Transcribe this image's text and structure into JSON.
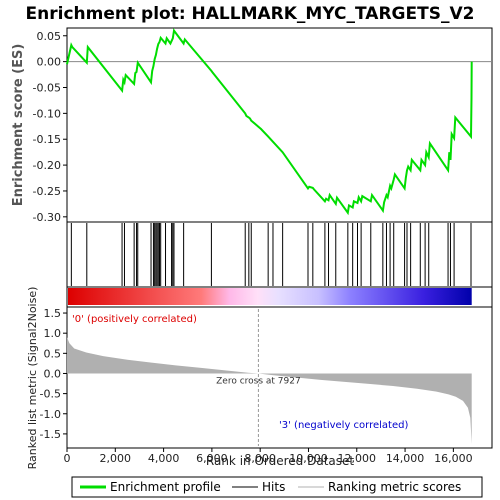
{
  "chart_data": {
    "type": "line",
    "title": "Enrichment plot: HALLMARK_MYC_TARGETS_V2",
    "top_panel": {
      "ylabel": "Enrichment score (ES)",
      "ylim": [
        -0.31,
        0.065
      ],
      "yticks": [
        0.05,
        0.0,
        -0.05,
        -0.1,
        -0.15,
        -0.2,
        -0.25,
        -0.3
      ],
      "ytick_labels": [
        "0.05",
        "0.00",
        "-0.05",
        "-0.10",
        "-0.15",
        "-0.20",
        "-0.25",
        "-0.30"
      ],
      "series": [
        {
          "name": "Enrichment profile",
          "color": "#00dd00",
          "x": [
            0,
            180,
            220,
            820,
            860,
            2280,
            2330,
            2380,
            2430,
            2780,
            2830,
            2880,
            2930,
            3480,
            3530,
            3580,
            3630,
            3680,
            3730,
            3780,
            3830,
            3880,
            4080,
            4130,
            4280,
            4330,
            4380,
            4430,
            4830,
            4880,
            5980,
            6030,
            7380,
            7430,
            7530,
            7580,
            7630,
            8030,
            8330,
            8530,
            8930,
            9980,
            10030,
            10180,
            10230,
            10680,
            10730,
            10830,
            10880,
            11130,
            11180,
            11630,
            11680,
            11830,
            11880,
            12030,
            12080,
            12180,
            12230,
            12580,
            12630,
            13080,
            13130,
            13230,
            13280,
            13380,
            13430,
            13530,
            13580,
            13980,
            14030,
            14080,
            14130,
            14230,
            14280,
            14630,
            14680,
            14830,
            14880,
            14980,
            15030,
            15780,
            15830,
            15880,
            15930,
            16030,
            16080,
            16730,
            16750,
            16760
          ],
          "y": [
            -0.005,
            0.032,
            0.028,
            -0.002,
            0.028,
            -0.056,
            -0.035,
            -0.04,
            -0.026,
            -0.043,
            -0.022,
            -0.02,
            -0.002,
            -0.04,
            -0.018,
            -0.009,
            0.005,
            0.013,
            0.025,
            0.034,
            0.038,
            0.046,
            0.035,
            0.045,
            0.035,
            0.04,
            0.045,
            0.06,
            0.035,
            0.043,
            -0.018,
            -0.021,
            -0.1,
            -0.105,
            -0.108,
            -0.11,
            -0.114,
            -0.13,
            -0.145,
            -0.155,
            -0.175,
            -0.245,
            -0.242,
            -0.244,
            -0.247,
            -0.27,
            -0.265,
            -0.268,
            -0.258,
            -0.275,
            -0.263,
            -0.292,
            -0.278,
            -0.282,
            -0.27,
            -0.273,
            -0.262,
            -0.27,
            -0.26,
            -0.27,
            -0.258,
            -0.288,
            -0.272,
            -0.258,
            -0.262,
            -0.24,
            -0.245,
            -0.228,
            -0.218,
            -0.245,
            -0.225,
            -0.21,
            -0.203,
            -0.21,
            -0.19,
            -0.21,
            -0.19,
            -0.2,
            -0.175,
            -0.185,
            -0.158,
            -0.21,
            -0.175,
            -0.19,
            -0.14,
            -0.148,
            -0.108,
            -0.145,
            -0.07,
            0.0
          ]
        }
      ],
      "zero_line_color": "#888888"
    },
    "hits_panel": {
      "legend_name": "Hits",
      "hit_positions": [
        180,
        820,
        2280,
        2380,
        2780,
        2880,
        2930,
        3480,
        3580,
        3630,
        3680,
        3730,
        3780,
        3830,
        3880,
        4080,
        4330,
        4380,
        4430,
        4830,
        5980,
        7380,
        7530,
        7630,
        8330,
        8530,
        8930,
        9980,
        10180,
        10680,
        10830,
        11130,
        11630,
        11830,
        12030,
        12180,
        12580,
        13080,
        13230,
        13380,
        13530,
        13980,
        14080,
        14230,
        14630,
        14830,
        14980,
        15780,
        15880,
        16030,
        16730
      ],
      "color": "#000000"
    },
    "ranked_metric": {
      "legend_name": "Ranking metric scores",
      "ylabel": "Ranked list metric (Signal2Noise)",
      "ylim": [
        -1.85,
        1.65
      ],
      "yticks": [
        1.5,
        1.0,
        0.5,
        0.0,
        -0.5,
        -1.0,
        -1.5
      ],
      "ytick_labels": [
        "1.5",
        "1.0",
        "0.5",
        "0.0",
        "-0.5",
        "-1.0",
        "-1.5"
      ],
      "x": [
        0,
        100,
        300,
        800,
        1500,
        2500,
        3500,
        4500,
        5500,
        6500,
        7500,
        7927,
        8500,
        9500,
        10500,
        11500,
        12500,
        13500,
        14500,
        15300,
        15800,
        16100,
        16400,
        16600,
        16700,
        16760
      ],
      "y": [
        0.9,
        0.75,
        0.62,
        0.52,
        0.43,
        0.34,
        0.27,
        0.2,
        0.14,
        0.08,
        0.02,
        0.0,
        -0.04,
        -0.1,
        -0.16,
        -0.21,
        -0.26,
        -0.31,
        -0.38,
        -0.45,
        -0.52,
        -0.58,
        -0.68,
        -0.85,
        -1.1,
        -1.75
      ],
      "color": "#b0b0b0",
      "zero_cross_label": "Zero cross at 7927",
      "zero_cross_x": 7927,
      "positive_label": "'0' (positively correlated)",
      "negative_label": "'3' (negatively correlated)"
    },
    "xaxis": {
      "xlabel": "Rank in Ordered Dataset",
      "xlim": [
        0,
        17600
      ],
      "xticks": [
        0,
        2000,
        4000,
        6000,
        8000,
        10000,
        12000,
        14000,
        16000
      ],
      "xtick_labels": [
        "0",
        "2,000",
        "4,000",
        "6,000",
        "8,000",
        "10,000",
        "12,000",
        "14,000",
        "16,000"
      ],
      "n_genes": 16760
    },
    "legend": {
      "entries": [
        {
          "name": "Enrichment profile",
          "color": "#00dd00"
        },
        {
          "name": "Hits",
          "color": "#000000"
        },
        {
          "name": "Ranking metric scores",
          "color": "#b0b0b0"
        }
      ],
      "placement": "bottom"
    }
  }
}
